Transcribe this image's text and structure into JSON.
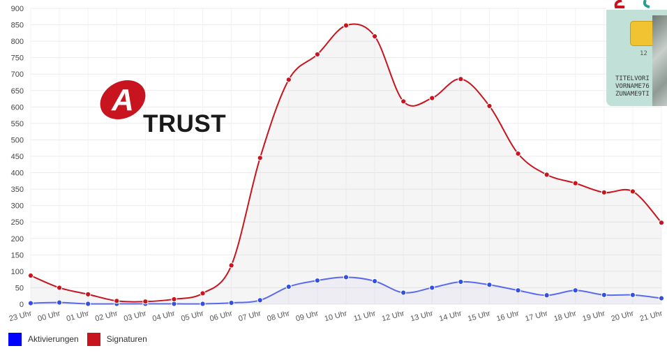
{
  "chart_data": {
    "type": "line",
    "categories": [
      "23 Uhr",
      "00 Uhr",
      "01 Uhr",
      "02 Uhr",
      "03 Uhr",
      "04 Uhr",
      "05 Uhr",
      "06 Uhr",
      "07 Uhr",
      "08 Uhr",
      "09 Uhr",
      "10 Uhr",
      "11 Uhr",
      "12 Uhr",
      "13 Uhr",
      "14 Uhr",
      "15 Uhr",
      "16 Uhr",
      "17 Uhr",
      "18 Uhr",
      "19 Uhr",
      "20 Uhr",
      "21 Uhr"
    ],
    "series": [
      {
        "name": "Aktivierungen",
        "color": "#0000ff",
        "values": [
          3,
          5,
          1,
          1,
          1,
          1,
          1,
          4,
          12,
          53,
          72,
          82,
          70,
          35,
          50,
          68,
          59,
          42,
          27,
          42,
          28,
          28,
          18
        ]
      },
      {
        "name": "Signaturen",
        "color": "#c8141e",
        "values": [
          87,
          50,
          30,
          10,
          8,
          15,
          33,
          118,
          445,
          683,
          760,
          848,
          815,
          617,
          627,
          685,
          603,
          458,
          394,
          368,
          340,
          343,
          248
        ]
      }
    ],
    "ylim": [
      0,
      900
    ],
    "yticks": [
      0,
      50,
      100,
      150,
      200,
      250,
      300,
      350,
      400,
      450,
      500,
      550,
      600,
      650,
      700,
      750,
      800,
      850,
      900
    ],
    "grid": true,
    "legend_position": "bottom-left"
  },
  "logo": {
    "text": "TRUST",
    "letter": "A",
    "color": "#c8141e"
  },
  "card": {
    "number": "12",
    "lines": [
      "TITELVORI",
      "VORNAME76",
      "ZUNAME9TI"
    ]
  }
}
